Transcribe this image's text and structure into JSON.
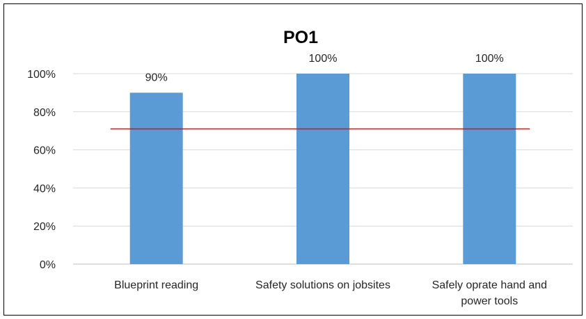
{
  "chart_data": {
    "type": "bar",
    "title": "PO1",
    "categories": [
      [
        "Blueprint reading"
      ],
      [
        "Safety solutions on jobsites"
      ],
      [
        "Safely oprate hand and",
        "power tools"
      ]
    ],
    "values": [
      90,
      100,
      100
    ],
    "data_labels": [
      "90%",
      "100%",
      "100%"
    ],
    "ylim": [
      0,
      100
    ],
    "yticks": [
      0,
      20,
      40,
      60,
      80,
      100
    ],
    "ytick_labels": [
      "0%",
      "20%",
      "40%",
      "60%",
      "80%",
      "100%"
    ],
    "target_line": 71,
    "grid": true,
    "legend": "none",
    "colors": {
      "bar": "#5b9bd5",
      "target": "#ff0000",
      "grid": "#d9d9d9",
      "axis": "#bfbfbf"
    }
  }
}
